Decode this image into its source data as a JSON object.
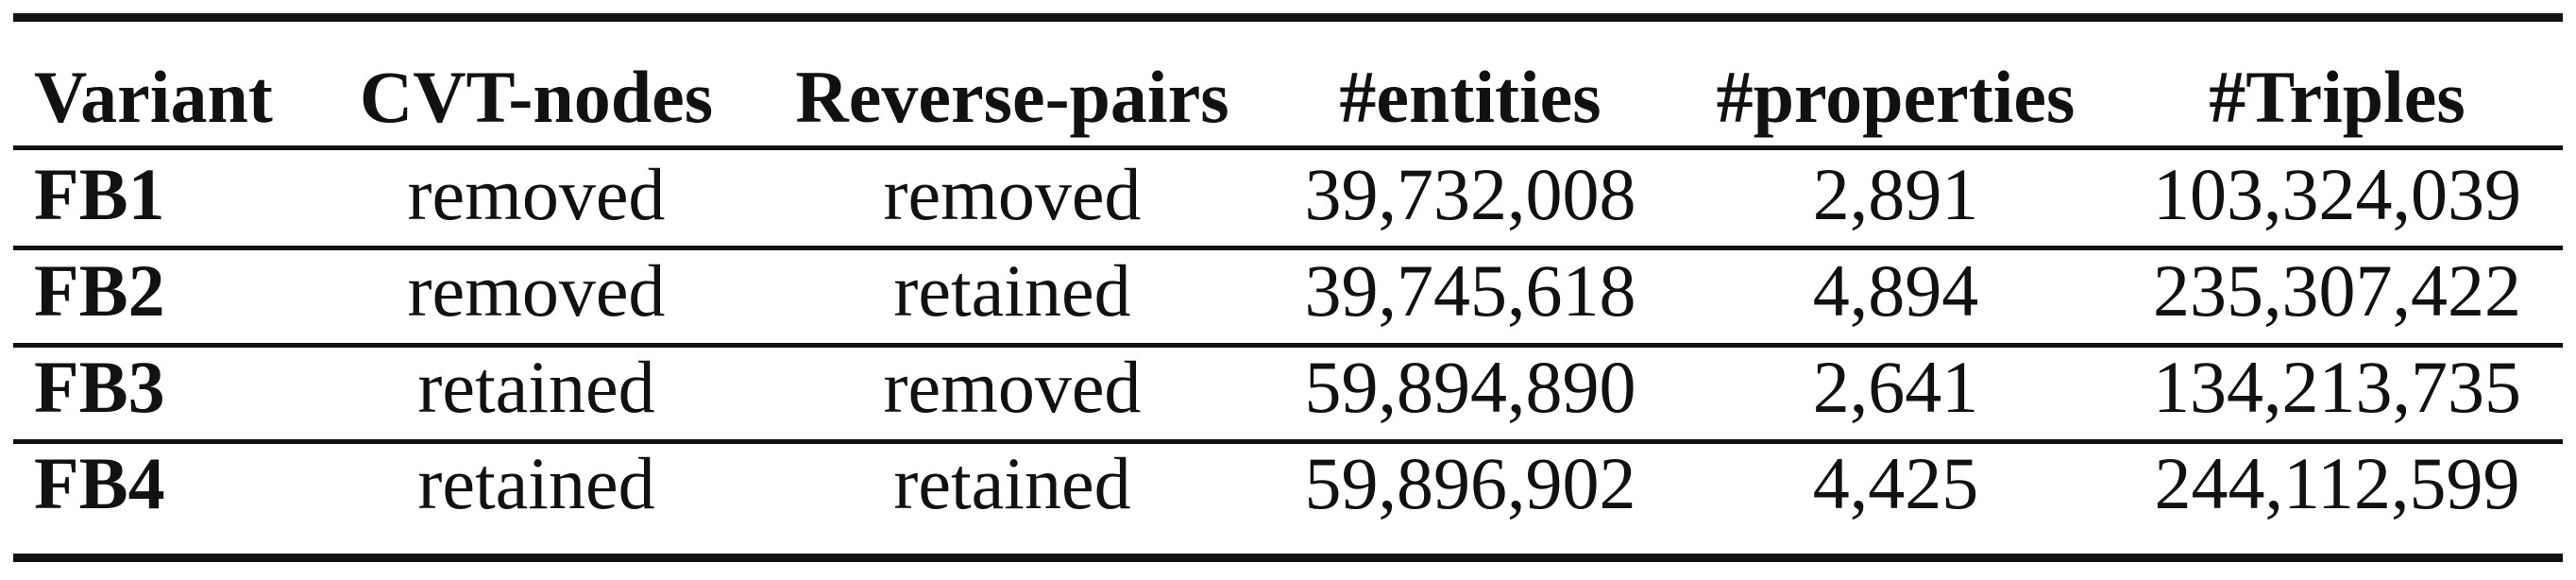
{
  "table": {
    "headers": [
      "Variant",
      "CVT-nodes",
      "Reverse-pairs",
      "#entities",
      "#properties",
      "#Triples"
    ],
    "rows": [
      [
        "FB1",
        "removed",
        "removed",
        "39,732,008",
        "2,891",
        "103,324,039"
      ],
      [
        "FB2",
        "removed",
        "retained",
        "39,745,618",
        "4,894",
        "235,307,422"
      ],
      [
        "FB3",
        "retained",
        "removed",
        "59,894,890",
        "2,641",
        "134,213,735"
      ],
      [
        "FB4",
        "retained",
        "retained",
        "59,896,902",
        "4,425",
        "244,112,599"
      ]
    ]
  }
}
